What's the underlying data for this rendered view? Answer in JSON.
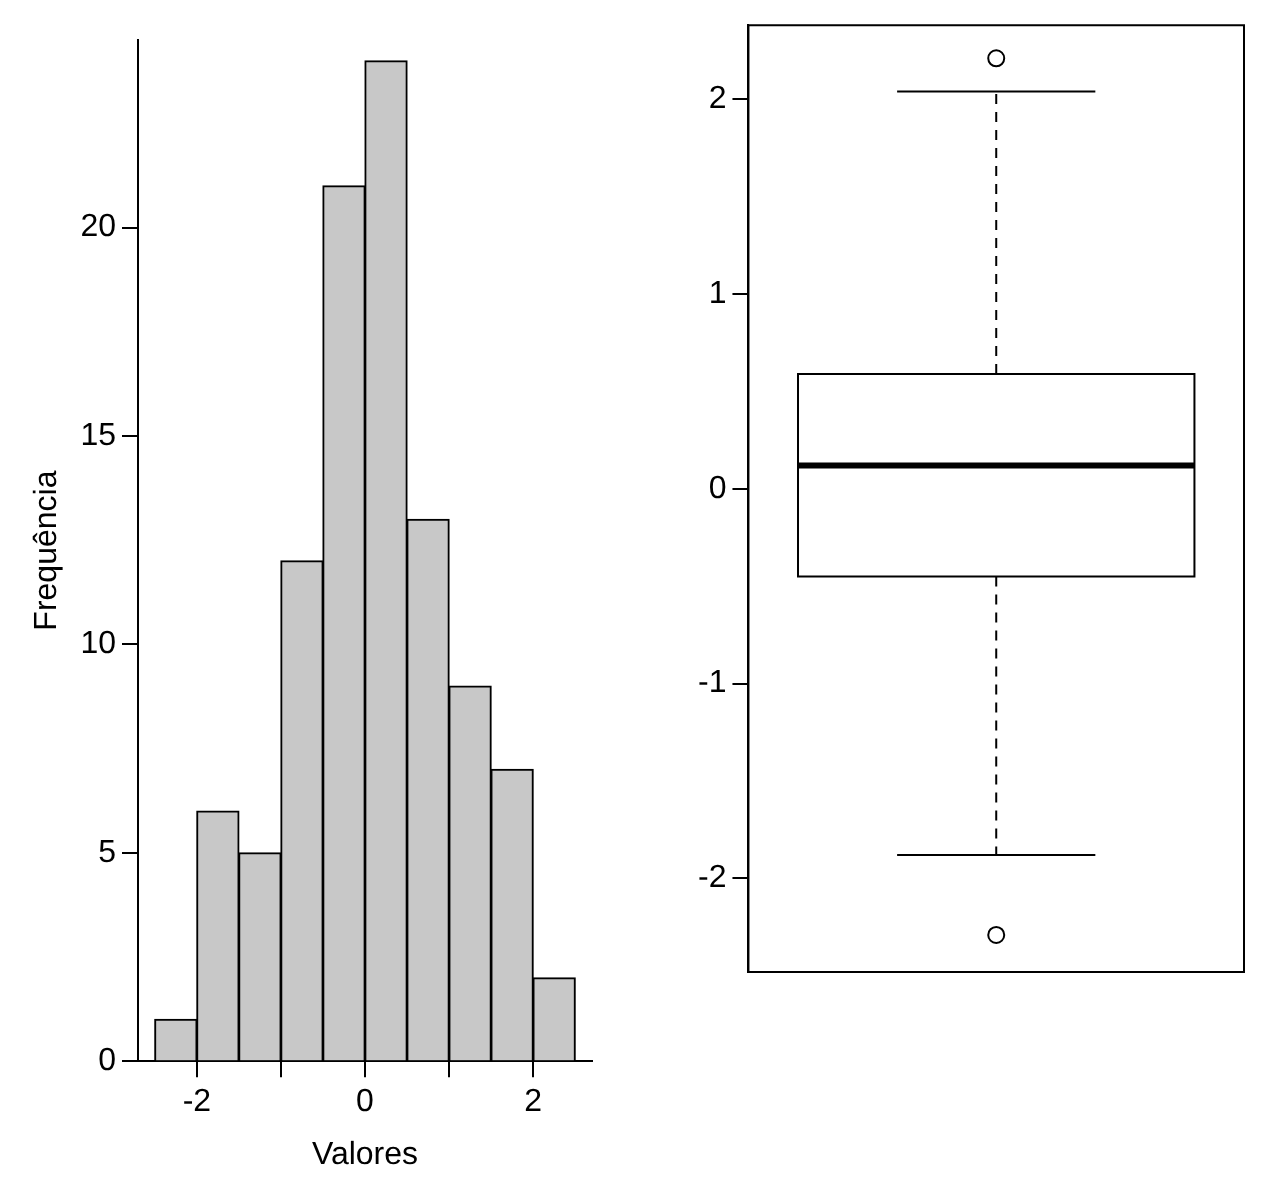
{
  "chart_data": [
    {
      "type": "histogram",
      "xlabel": "Valores",
      "ylabel": "Frequência",
      "bins": [
        -2.5,
        -2,
        -1.5,
        -1,
        -0.5,
        0,
        0.5,
        1,
        1.5,
        2,
        2.5
      ],
      "values": [
        1,
        6,
        5,
        12,
        21,
        24,
        13,
        9,
        7,
        2
      ],
      "color": "#c8c8c8",
      "xlim": [
        -2.7,
        2.7
      ],
      "xticks": [
        -2,
        {
          "value": -1,
          "label": null
        },
        0,
        {
          "value": 1,
          "label": null
        },
        2
      ],
      "ylim": [
        0,
        24.5
      ],
      "yticks": [
        0,
        5,
        10,
        15,
        20
      ],
      "grid": false,
      "legend": false
    },
    {
      "type": "box",
      "categories": [
        null
      ],
      "boxes": [
        {
          "low": -1.88,
          "q1": -0.45,
          "median": 0.12,
          "q3": 0.59,
          "high": 2.04,
          "outliers": [
            2.21,
            -2.29
          ]
        }
      ],
      "color": "#ffffff",
      "ylim": [
        -2.48,
        2.38
      ],
      "yticks": [
        -2,
        -1,
        0,
        1,
        2
      ],
      "grid": false,
      "legend": false
    }
  ]
}
